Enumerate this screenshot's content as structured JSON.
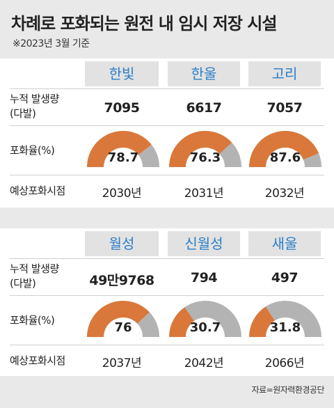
{
  "title": "차례로 포화되는 원전 내 임시 저장 시설",
  "subtitle": "※2023년 3월 기준",
  "row_labels": {
    "generation": [
      "누적 발생량",
      "(다발)"
    ],
    "saturation": "포화율(%)",
    "forecast": "예상포화시점"
  },
  "groups": [
    {
      "plants": [
        {
          "name": "한빛",
          "generation": "7095",
          "saturation": 78.7,
          "saturation_label": "78.7",
          "year": "2030년"
        },
        {
          "name": "한울",
          "generation": "6617",
          "saturation": 76.3,
          "saturation_label": "76.3",
          "year": "2031년"
        },
        {
          "name": "고리",
          "generation": "7057",
          "saturation": 87.6,
          "saturation_label": "87.6",
          "year": "2032년"
        }
      ]
    },
    {
      "plants": [
        {
          "name": "월성",
          "generation": "49만9768",
          "saturation": 76,
          "saturation_label": "76",
          "year": "2037년"
        },
        {
          "name": "신월성",
          "generation": "794",
          "saturation": 30.7,
          "saturation_label": "30.7",
          "year": "2042년"
        },
        {
          "name": "새울",
          "generation": "497",
          "saturation": 31.8,
          "saturation_label": "31.8",
          "year": "2066년"
        }
      ]
    }
  ],
  "colors": {
    "filled": "#d9783a",
    "empty": "#b3b3b3",
    "header_text": "#2a7ec8"
  },
  "source": "자료=원자력환경공단"
}
